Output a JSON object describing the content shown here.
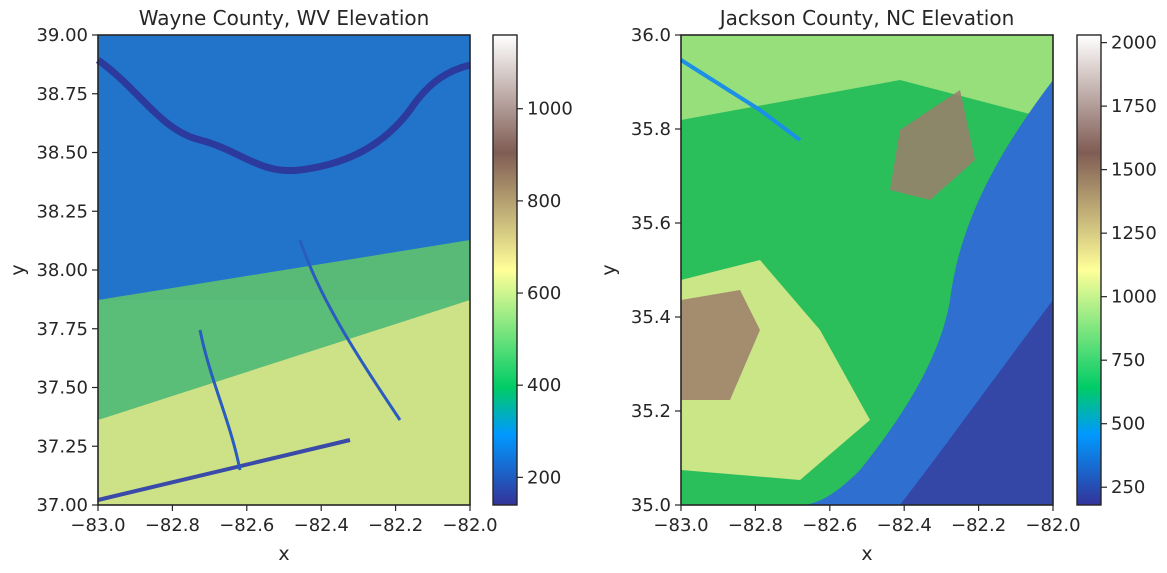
{
  "chart_data": [
    {
      "type": "heatmap",
      "title": "Wayne County, WV Elevation",
      "xlabel": "x",
      "ylabel": "y",
      "xlim": [
        -83.0,
        -82.0
      ],
      "ylim": [
        37.0,
        39.0
      ],
      "x_ticks": [
        -83.0,
        -82.8,
        -82.6,
        -82.4,
        -82.2,
        -82.0
      ],
      "x_tick_labels": [
        "−83.0",
        "−82.8",
        "−82.6",
        "−82.4",
        "−82.2",
        "−82.0"
      ],
      "y_ticks": [
        37.0,
        37.25,
        37.5,
        37.75,
        38.0,
        38.25,
        38.5,
        38.75,
        39.0
      ],
      "y_tick_labels": [
        "37.00",
        "37.25",
        "37.50",
        "37.75",
        "38.00",
        "38.25",
        "38.50",
        "38.75",
        "39.00"
      ],
      "colorbar": {
        "colormap": "terrain",
        "range": [
          140,
          1160
        ],
        "ticks": [
          200,
          400,
          600,
          800,
          1000
        ],
        "tick_labels": [
          "200",
          "400",
          "600",
          "800",
          "1000"
        ]
      },
      "grid": false
    },
    {
      "type": "heatmap",
      "title": "Jackson County, NC Elevation",
      "xlabel": "x",
      "ylabel": "y",
      "xlim": [
        -83.0,
        -82.0
      ],
      "ylim": [
        35.0,
        36.0
      ],
      "x_ticks": [
        -83.0,
        -82.8,
        -82.6,
        -82.4,
        -82.2,
        -82.0
      ],
      "x_tick_labels": [
        "−83.0",
        "−82.8",
        "−82.6",
        "−82.4",
        "−82.2",
        "−82.0"
      ],
      "y_ticks": [
        35.0,
        35.2,
        35.4,
        35.6,
        35.8,
        36.0
      ],
      "y_tick_labels": [
        "35.0",
        "35.2",
        "35.4",
        "35.6",
        "35.8",
        "36.0"
      ],
      "colorbar": {
        "colormap": "terrain",
        "range": [
          180,
          2030
        ],
        "ticks": [
          250,
          500,
          750,
          1000,
          1250,
          1500,
          1750,
          2000
        ],
        "tick_labels": [
          "250",
          "500",
          "750",
          "1000",
          "1250",
          "1500",
          "1750",
          "2000"
        ]
      },
      "grid": false
    }
  ]
}
